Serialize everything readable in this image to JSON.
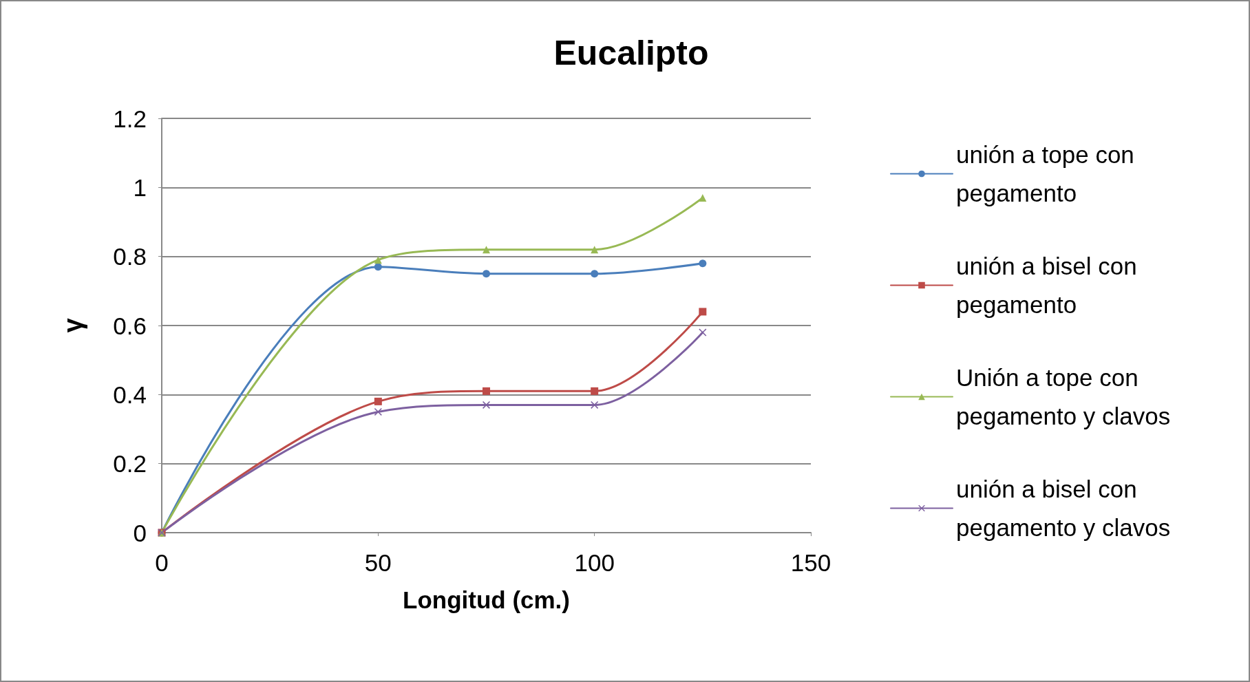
{
  "chart_data": {
    "type": "line",
    "title": "Eucalipto",
    "xlabel": "Longitud (cm.)",
    "ylabel": "γ",
    "x": [
      0,
      50,
      75,
      100,
      125
    ],
    "series": [
      {
        "name": "unión a tope con pegamento",
        "color": "#4a7ebb",
        "marker": "circle",
        "values": [
          0,
          0.77,
          0.75,
          0.75,
          0.78
        ]
      },
      {
        "name": "unión a bisel con pegamento",
        "color": "#be4b48",
        "marker": "square",
        "values": [
          0,
          0.38,
          0.41,
          0.41,
          0.64
        ]
      },
      {
        "name": "Unión a tope con pegamento y clavos",
        "color": "#98b954",
        "marker": "triangle",
        "values": [
          0,
          0.79,
          0.82,
          0.82,
          0.97
        ]
      },
      {
        "name": "unión a bisel con pegamento y clavos",
        "color": "#7d60a0",
        "marker": "cross",
        "values": [
          0,
          0.35,
          0.37,
          0.37,
          0.58
        ]
      }
    ],
    "xlim": [
      0,
      150
    ],
    "xticks": [
      0,
      50,
      100,
      150
    ],
    "ylim": [
      0,
      1.2
    ],
    "yticks": [
      0,
      0.2,
      0.4,
      0.6,
      0.8,
      1,
      1.2
    ],
    "grid": "y",
    "legend": "right",
    "line_style": "solid"
  }
}
